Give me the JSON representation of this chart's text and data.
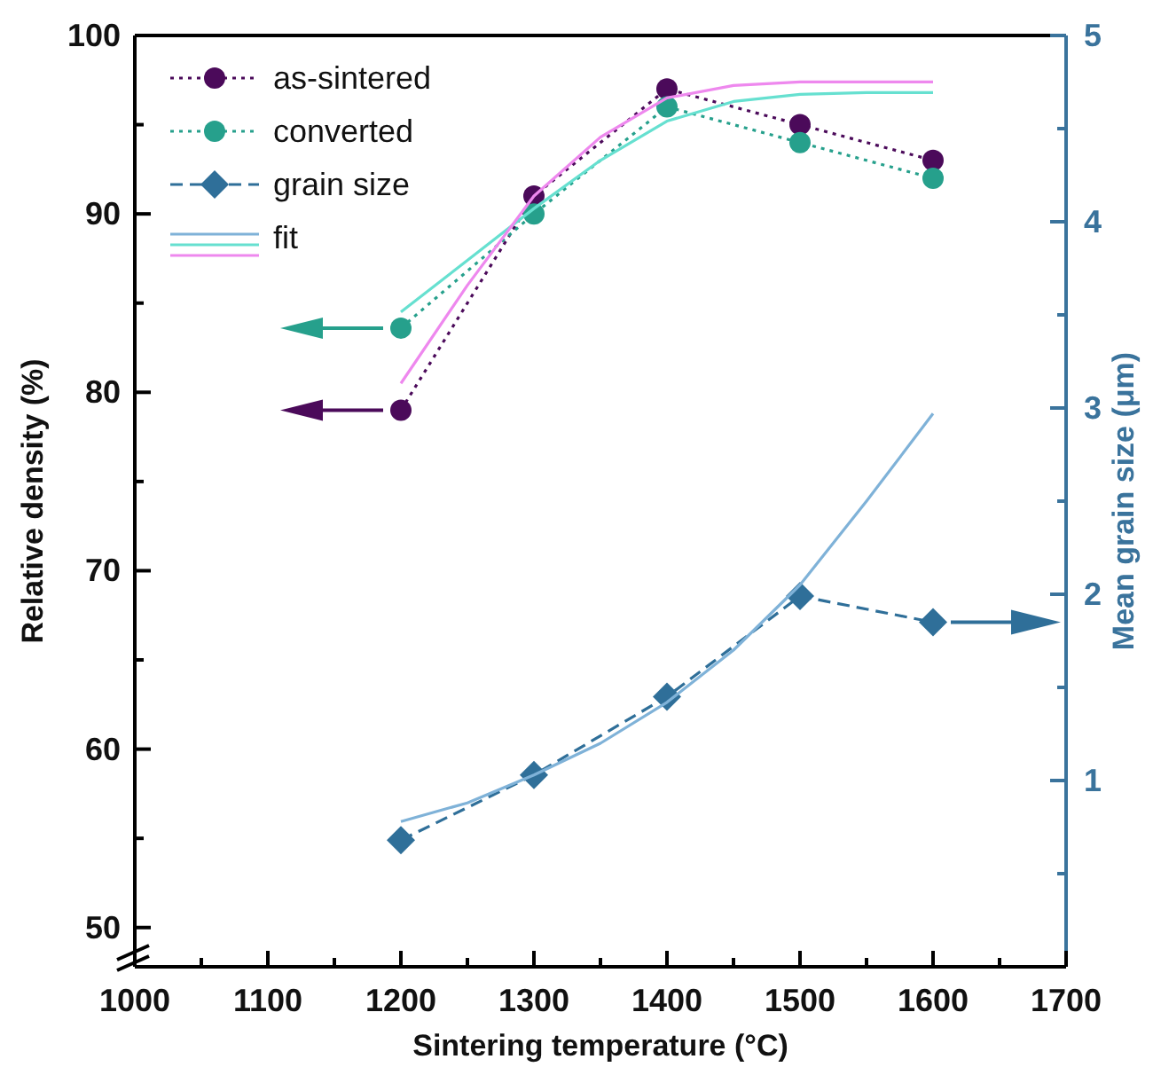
{
  "chart_data": {
    "type": "line",
    "xlabel": "Sintering temperature (°C)",
    "ylabel": "Relative density (%)",
    "y2label": "Mean grain size (μm)",
    "xlim": [
      1000,
      1700
    ],
    "xticks": [
      1000,
      {
        "value": 1050,
        "label": null
      },
      1100,
      {
        "value": 1150,
        "label": null
      },
      1200,
      {
        "value": 1250,
        "label": null
      },
      1300,
      {
        "value": 1350,
        "label": null
      },
      1400,
      {
        "value": 1450,
        "label": null
      },
      1500,
      {
        "value": 1550,
        "label": null
      },
      1600,
      {
        "value": 1650,
        "label": null
      },
      1700
    ],
    "ylim": [
      47.8,
      100
    ],
    "yticks": [
      50,
      {
        "value": 55,
        "label": null
      },
      60,
      {
        "value": 65,
        "label": null
      },
      70,
      {
        "value": 75,
        "label": null
      },
      80,
      {
        "value": 85,
        "label": null
      },
      90,
      {
        "value": 95,
        "label": null
      },
      100
    ],
    "y2lim": [
      0,
      5
    ],
    "y2ticks": [
      {
        "value": 0.5,
        "label": null
      },
      1,
      {
        "value": 1.5,
        "label": null
      },
      2,
      {
        "value": 2.5,
        "label": null
      },
      3,
      {
        "value": 3.5,
        "label": null
      },
      4,
      {
        "value": 4.5,
        "label": null
      },
      5
    ],
    "legend": "top left",
    "grid": false,
    "series": [
      {
        "name": "as-sintered",
        "color": "#4b0a5a",
        "marker": "circle",
        "line_style": "dotted",
        "x": [
          1200,
          1300,
          1400,
          1500,
          1600
        ],
        "values": [
          79,
          91,
          97,
          95,
          93
        ]
      },
      {
        "name": "converted",
        "color": "#26a08c",
        "marker": "circle",
        "line_style": "dotted",
        "x": [
          1200,
          1300,
          1400,
          1500,
          1600
        ],
        "values": [
          83.6,
          90,
          96,
          94,
          92
        ]
      },
      {
        "name": "grain size",
        "color": "#2f6f99",
        "marker": "diamond",
        "line_style": "dashed",
        "axis": "y2",
        "x": [
          1200,
          1300,
          1400,
          1500,
          1600
        ],
        "values": [
          0.68,
          1.03,
          1.45,
          1.99,
          1.85
        ]
      },
      {
        "name": "fit",
        "color": "#7fb2d8",
        "marker": "none",
        "line_style": "solid",
        "axis": "y2",
        "x": [
          1200,
          1250,
          1300,
          1350,
          1400,
          1450,
          1500,
          1550,
          1600
        ],
        "values": [
          0.78,
          0.88,
          1.03,
          1.2,
          1.42,
          1.7,
          2.05,
          2.5,
          2.97
        ]
      },
      {
        "color": "#66e0d0",
        "marker": "none",
        "line_style": "solid",
        "x": [
          1200,
          1250,
          1300,
          1350,
          1400,
          1450,
          1500,
          1550,
          1600
        ],
        "values": [
          84.5,
          87.4,
          90.3,
          93,
          95.2,
          96.3,
          96.7,
          96.8,
          96.8
        ]
      },
      {
        "color": "#ee88ee",
        "marker": "none",
        "line_style": "solid",
        "x": [
          1200,
          1250,
          1300,
          1350,
          1400,
          1450,
          1500,
          1550,
          1600
        ],
        "values": [
          80.5,
          86,
          91,
          94.3,
          96.5,
          97.2,
          97.4,
          97.4,
          97.4
        ]
      }
    ]
  }
}
